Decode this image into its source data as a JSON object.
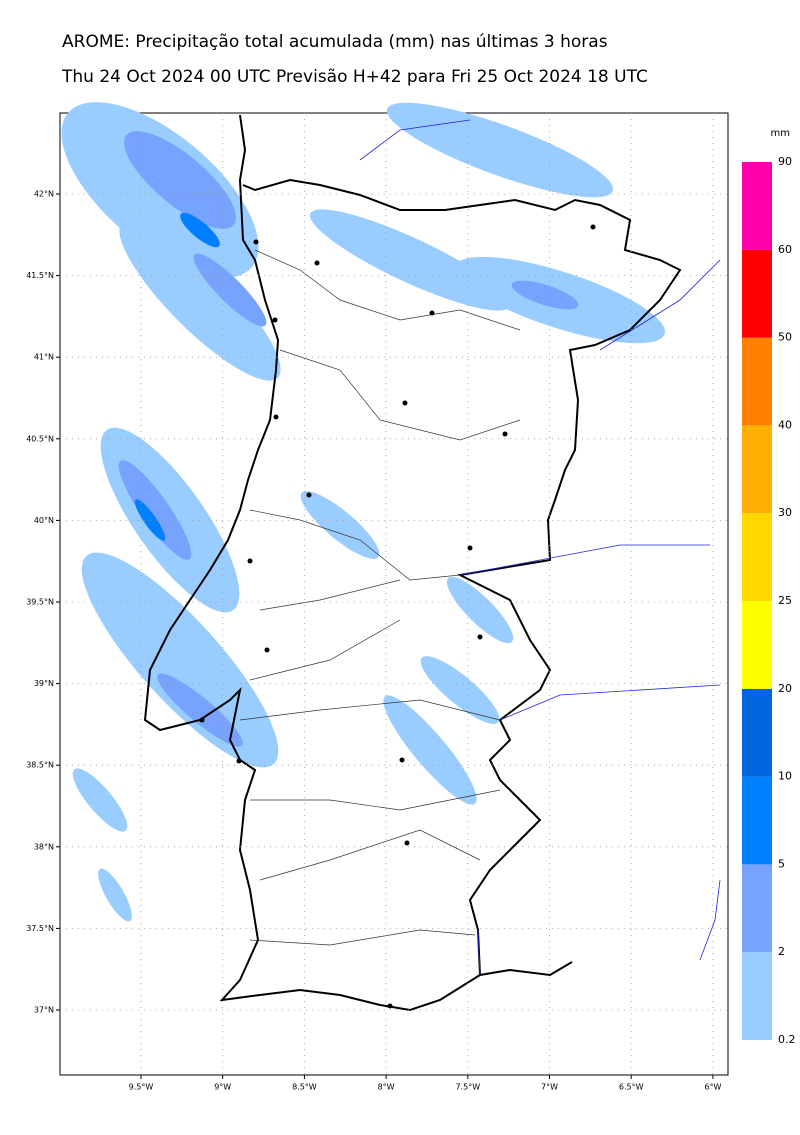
{
  "header": {
    "title": "AROME: Precipitação total acumulada (mm) nas últimas 3 horas",
    "subtitle": "Thu 24 Oct 2024 00 UTC Previsão H+42 para Fri 25 Oct 2024 18 UTC"
  },
  "map": {
    "lat_labels": [
      "42°N",
      "41.5°N",
      "41°N",
      "40.5°N",
      "40°N",
      "39.5°N",
      "39°N",
      "38.5°N",
      "38°N",
      "37.5°N",
      "37°N"
    ],
    "lon_labels": [
      "9.5°W",
      "9°W",
      "8.5°W",
      "8°W",
      "7.5°W",
      "7°W",
      "6.5°W",
      "6°W"
    ]
  },
  "colorbar": {
    "unit": "mm",
    "labels": [
      "0.2",
      "2",
      "5",
      "10",
      "20",
      "25",
      "30",
      "40",
      "50",
      "60",
      "90"
    ],
    "colors": [
      "#99ccff",
      "#77a3ff",
      "#0080ff",
      "#0066dd",
      "#ffff00",
      "#ffd800",
      "#ffb000",
      "#ff8000",
      "#ff0000",
      "#ff00aa"
    ]
  }
}
